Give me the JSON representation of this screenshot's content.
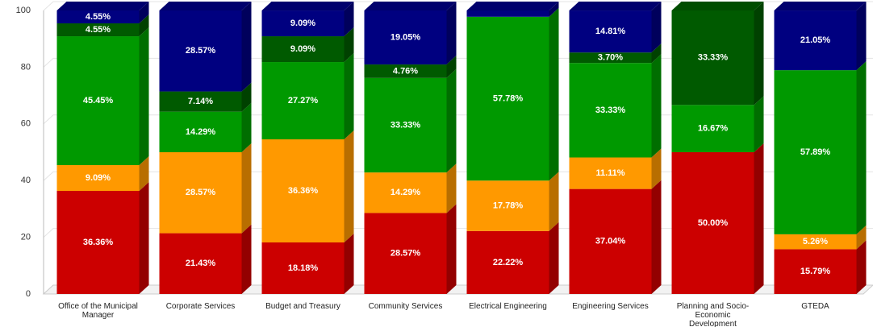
{
  "chart_data": {
    "type": "stacked-bar-3d",
    "categories": [
      "Office of the Municipal Manager",
      "Corporate Services",
      "Budget and Treasury",
      "Community Services",
      "Electrical Engineering",
      "Engineering Services",
      "Planning and Socio-Economic Development",
      "GTEDA"
    ],
    "series": [
      {
        "color": "#cc0000",
        "values": [
          36.36,
          21.43,
          18.18,
          28.57,
          22.22,
          37.04,
          50.0,
          15.79
        ],
        "value_labels": [
          "36.36%",
          "21.43%",
          "18.18%",
          "28.57%",
          "22.22%",
          "37.04%",
          "50.00%",
          "15.79%"
        ]
      },
      {
        "color": "#ff9900",
        "values": [
          9.09,
          28.57,
          36.36,
          14.29,
          17.78,
          11.11,
          null,
          5.26
        ],
        "value_labels": [
          "9.09%",
          "28.57%",
          "36.36%",
          "14.29%",
          "17.78%",
          "11.11%",
          null,
          "5.26%"
        ]
      },
      {
        "color": "#009900",
        "values": [
          45.45,
          14.29,
          27.27,
          33.33,
          57.78,
          33.33,
          16.67,
          57.89
        ],
        "value_labels": [
          "45.45%",
          "14.29%",
          "27.27%",
          "33.33%",
          "57.78%",
          "33.33%",
          "16.67%",
          "57.89%"
        ]
      },
      {
        "color": "#005a00",
        "values": [
          4.55,
          7.14,
          9.09,
          4.76,
          null,
          3.7,
          33.33,
          null
        ],
        "value_labels": [
          "4.55%",
          "7.14%",
          "9.09%",
          "4.76%",
          null,
          "3.70%",
          "33.33%",
          null
        ]
      },
      {
        "color": "#000080",
        "values": [
          4.55,
          28.57,
          9.09,
          19.05,
          2.22,
          14.81,
          null,
          21.05
        ],
        "value_labels": [
          "4.55%",
          "28.57%",
          "9.09%",
          "19.05%",
          null,
          "14.81%",
          null,
          "21.05%"
        ]
      }
    ],
    "ylim": [
      0,
      100
    ],
    "yticks": [
      0,
      20,
      40,
      60,
      80,
      100
    ],
    "grid": true
  }
}
